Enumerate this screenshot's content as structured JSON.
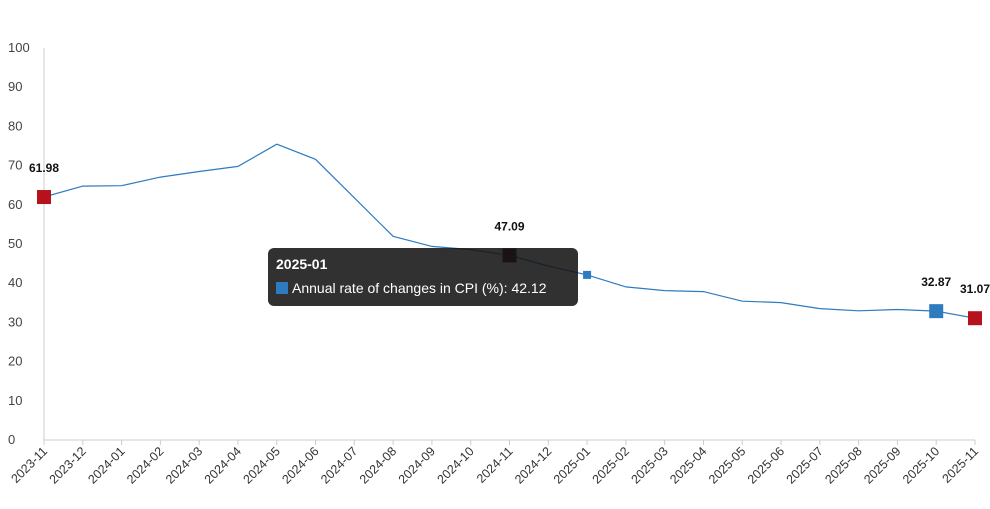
{
  "chart_data": {
    "type": "line",
    "title": "",
    "xlabel": "",
    "ylabel": "",
    "ylim": [
      0,
      100
    ],
    "yticks": [
      0,
      10,
      20,
      30,
      40,
      50,
      60,
      70,
      80,
      90,
      100
    ],
    "grid": false,
    "categories": [
      "2023-11",
      "2023-12",
      "2024-01",
      "2024-02",
      "2024-03",
      "2024-04",
      "2024-05",
      "2024-06",
      "2024-07",
      "2024-08",
      "2024-09",
      "2024-10",
      "2024-11",
      "2024-12",
      "2025-01",
      "2025-02",
      "2025-03",
      "2025-04",
      "2025-05",
      "2025-06",
      "2025-07",
      "2025-08",
      "2025-09",
      "2025-10",
      "2025-11"
    ],
    "series": [
      {
        "name": "Annual rate of changes in CPI (%)",
        "color": "#2e7bbf",
        "values": [
          61.98,
          64.77,
          64.86,
          67.07,
          68.5,
          69.8,
          75.45,
          71.6,
          61.78,
          51.97,
          49.38,
          48.58,
          47.09,
          44.38,
          42.12,
          39.05,
          38.1,
          37.86,
          35.41,
          35.05,
          33.52,
          32.95,
          33.29,
          32.87,
          31.07
        ]
      }
    ],
    "data_labels": [
      {
        "index": 0,
        "text": "61.98",
        "marker_color": "#b5121b"
      },
      {
        "index": 12,
        "text": "47.09",
        "marker_color": "#3a0a0a"
      },
      {
        "index": 23,
        "text": "32.87",
        "marker_color": "#2e7bbf"
      },
      {
        "index": 24,
        "text": "31.07",
        "marker_color": "#b5121b"
      }
    ]
  },
  "tooltip": {
    "title": "2025-01",
    "series_name": "Annual rate of changes in CPI (%)",
    "value": "42.12",
    "swatch_color": "#2e7bbf",
    "index": 14
  }
}
